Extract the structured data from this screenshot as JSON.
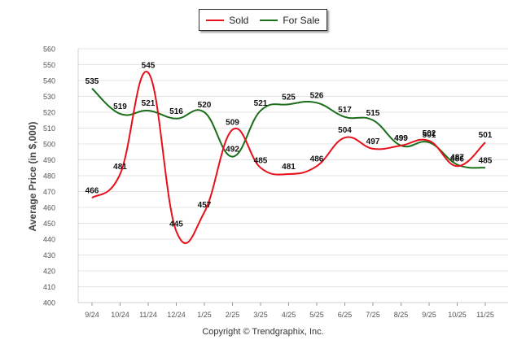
{
  "chart_data": {
    "type": "line",
    "title": "",
    "xlabel": "",
    "ylabel": "Average Price (in $,000)",
    "categories": [
      "9/24",
      "10/24",
      "11/24",
      "12/24",
      "1/25",
      "2/25",
      "3/25",
      "4/25",
      "5/25",
      "6/25",
      "7/25",
      "8/25",
      "9/25",
      "10/25",
      "11/25"
    ],
    "ylim": [
      400,
      560
    ],
    "yticks": [
      400,
      410,
      420,
      430,
      440,
      450,
      460,
      470,
      480,
      490,
      500,
      510,
      520,
      530,
      540,
      550,
      560
    ],
    "series": [
      {
        "name": "Sold",
        "color": "#e8101a",
        "values": [
          466,
          481,
          545,
          445,
          457,
          509,
          485,
          481,
          486,
          504,
          497,
          499,
          502,
          486,
          501
        ]
      },
      {
        "name": "For Sale",
        "color": "#1a6e1a",
        "values": [
          535,
          519,
          521,
          516,
          520,
          492,
          521,
          525,
          526,
          517,
          515,
          499,
          501,
          487,
          485
        ]
      }
    ],
    "legend_position": "top-center",
    "grid": true
  },
  "footer": {
    "copyright": "Copyright © Trendgraphix, Inc."
  }
}
